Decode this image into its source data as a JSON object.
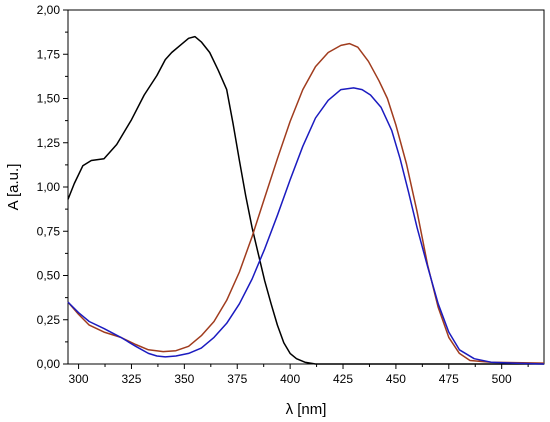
{
  "chart_data": {
    "type": "line",
    "xlabel": "λ [nm]",
    "ylabel": "A [a.u.]",
    "xlim": [
      295,
      520
    ],
    "ylim": [
      0,
      2.0
    ],
    "x_ticks": [
      {
        "value": 300,
        "label": "300"
      },
      {
        "value": 325,
        "label": "325"
      },
      {
        "value": 350,
        "label": "350"
      },
      {
        "value": 375,
        "label": "375"
      },
      {
        "value": 400,
        "label": "400"
      },
      {
        "value": 425,
        "label": "425"
      },
      {
        "value": 450,
        "label": "450"
      },
      {
        "value": 475,
        "label": "475"
      },
      {
        "value": 500,
        "label": "500"
      }
    ],
    "y_ticks": [
      {
        "value": 0.0,
        "label": "0,00"
      },
      {
        "value": 0.25,
        "label": "0,25"
      },
      {
        "value": 0.5,
        "label": "0,50"
      },
      {
        "value": 0.75,
        "label": "0,75"
      },
      {
        "value": 1.0,
        "label": "1,00"
      },
      {
        "value": 1.25,
        "label": "1,25"
      },
      {
        "value": 1.5,
        "label": "1,50"
      },
      {
        "value": 1.75,
        "label": "1,75"
      },
      {
        "value": 2.0,
        "label": "2,00"
      }
    ],
    "grid": false,
    "series": [
      {
        "color": "#000000",
        "points": [
          [
            295,
            0.93
          ],
          [
            298,
            1.02
          ],
          [
            302,
            1.12
          ],
          [
            306,
            1.15
          ],
          [
            312,
            1.16
          ],
          [
            318,
            1.24
          ],
          [
            325,
            1.38
          ],
          [
            331,
            1.52
          ],
          [
            337,
            1.63
          ],
          [
            341,
            1.72
          ],
          [
            344,
            1.76
          ],
          [
            348,
            1.8
          ],
          [
            352,
            1.84
          ],
          [
            355,
            1.85
          ],
          [
            358,
            1.82
          ],
          [
            362,
            1.76
          ],
          [
            366,
            1.66
          ],
          [
            370,
            1.55
          ],
          [
            373,
            1.36
          ],
          [
            376,
            1.15
          ],
          [
            379,
            0.95
          ],
          [
            382,
            0.77
          ],
          [
            385,
            0.62
          ],
          [
            388,
            0.47
          ],
          [
            391,
            0.34
          ],
          [
            394,
            0.22
          ],
          [
            397,
            0.12
          ],
          [
            400,
            0.06
          ],
          [
            403,
            0.03
          ],
          [
            407,
            0.01
          ],
          [
            412,
            0.0
          ],
          [
            420,
            0.0
          ],
          [
            520,
            0.0
          ]
        ]
      },
      {
        "color": "#a03c1e",
        "points": [
          [
            295,
            0.35
          ],
          [
            300,
            0.28
          ],
          [
            305,
            0.22
          ],
          [
            312,
            0.18
          ],
          [
            320,
            0.15
          ],
          [
            327,
            0.11
          ],
          [
            333,
            0.08
          ],
          [
            340,
            0.07
          ],
          [
            346,
            0.075
          ],
          [
            352,
            0.1
          ],
          [
            358,
            0.16
          ],
          [
            364,
            0.24
          ],
          [
            370,
            0.36
          ],
          [
            376,
            0.52
          ],
          [
            382,
            0.72
          ],
          [
            388,
            0.94
          ],
          [
            394,
            1.16
          ],
          [
            400,
            1.37
          ],
          [
            406,
            1.55
          ],
          [
            412,
            1.68
          ],
          [
            418,
            1.76
          ],
          [
            424,
            1.8
          ],
          [
            428,
            1.81
          ],
          [
            432,
            1.79
          ],
          [
            437,
            1.71
          ],
          [
            442,
            1.6
          ],
          [
            446,
            1.5
          ],
          [
            450,
            1.35
          ],
          [
            455,
            1.13
          ],
          [
            460,
            0.86
          ],
          [
            465,
            0.56
          ],
          [
            470,
            0.32
          ],
          [
            475,
            0.15
          ],
          [
            480,
            0.06
          ],
          [
            485,
            0.02
          ],
          [
            495,
            0.01
          ],
          [
            520,
            0.005
          ]
        ]
      },
      {
        "color": "#1b1bc0",
        "points": [
          [
            295,
            0.35
          ],
          [
            300,
            0.29
          ],
          [
            305,
            0.24
          ],
          [
            312,
            0.2
          ],
          [
            320,
            0.15
          ],
          [
            327,
            0.1
          ],
          [
            333,
            0.06
          ],
          [
            337,
            0.045
          ],
          [
            341,
            0.04
          ],
          [
            346,
            0.045
          ],
          [
            352,
            0.06
          ],
          [
            358,
            0.09
          ],
          [
            364,
            0.15
          ],
          [
            370,
            0.23
          ],
          [
            376,
            0.34
          ],
          [
            382,
            0.48
          ],
          [
            388,
            0.65
          ],
          [
            394,
            0.84
          ],
          [
            400,
            1.04
          ],
          [
            406,
            1.23
          ],
          [
            412,
            1.39
          ],
          [
            418,
            1.49
          ],
          [
            424,
            1.55
          ],
          [
            430,
            1.56
          ],
          [
            434,
            1.55
          ],
          [
            438,
            1.52
          ],
          [
            443,
            1.45
          ],
          [
            448,
            1.32
          ],
          [
            452,
            1.16
          ],
          [
            456,
            0.97
          ],
          [
            460,
            0.77
          ],
          [
            465,
            0.55
          ],
          [
            470,
            0.34
          ],
          [
            475,
            0.18
          ],
          [
            480,
            0.08
          ],
          [
            487,
            0.03
          ],
          [
            495,
            0.01
          ],
          [
            505,
            0.005
          ],
          [
            520,
            0.0
          ]
        ]
      }
    ]
  }
}
